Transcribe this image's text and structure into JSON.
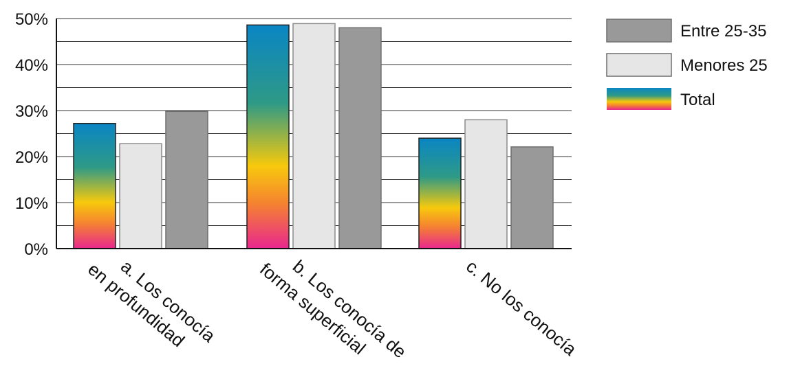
{
  "chart_data": {
    "type": "bar",
    "categories": [
      [
        "a. Los conocía",
        "en profundidad"
      ],
      [
        "b. Los conocía de",
        "forma superficial"
      ],
      [
        "c. No los conocía"
      ]
    ],
    "series": [
      {
        "name": "Total",
        "values": [
          27.2,
          48.6,
          24.0
        ],
        "style": "gradient"
      },
      {
        "name": "Menores 25",
        "values": [
          22.8,
          48.9,
          28.0
        ],
        "color": "#e6e6e6"
      },
      {
        "name": "Entre 25-35",
        "values": [
          29.8,
          48.0,
          22.1
        ],
        "color": "#999999"
      }
    ],
    "legend_order": [
      "Entre 25-35",
      "Menores 25",
      "Total"
    ],
    "legend_position": "right",
    "y_ticks": [
      "0%",
      "10%",
      "20%",
      "30%",
      "40%",
      "50%"
    ],
    "ylim": [
      0,
      50
    ],
    "grid": true,
    "gradient_colors": [
      "#0a85c4",
      "#2e9a86",
      "#f7c90c",
      "#f58231",
      "#e8278f"
    ]
  }
}
